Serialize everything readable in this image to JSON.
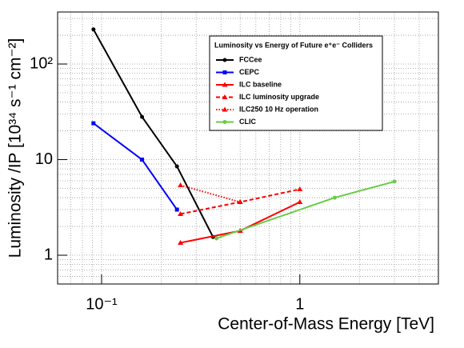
{
  "chart_data": {
    "type": "line",
    "x_label": "Center-of-Mass Energy [TeV]",
    "y_label": "Luminosity /IP [10³⁴ s⁻¹ cm⁻²]",
    "legend_title": "Luminosity vs Energy of Future e⁺e⁻ Colliders",
    "x_log": true,
    "y_log": true,
    "grid": true,
    "xlim": [
      0.06,
      5
    ],
    "ylim": [
      0.5,
      350
    ],
    "xticks": [
      {
        "value": 0.1,
        "label": "10⁻¹"
      },
      1
    ],
    "yticks": [
      1,
      10,
      {
        "value": 100,
        "label": "10²"
      }
    ],
    "x_minor_ticks": [
      0.07,
      0.08,
      0.09,
      0.2,
      0.3,
      0.4,
      0.5,
      0.6,
      0.7,
      0.8,
      0.9,
      2,
      3,
      4
    ],
    "y_minor_ticks": [
      0.6,
      0.7,
      0.8,
      0.9,
      2,
      3,
      4,
      5,
      6,
      7,
      8,
      9,
      20,
      30,
      40,
      50,
      60,
      70,
      80,
      90,
      200,
      300
    ],
    "series": [
      {
        "name": "FCCee",
        "color": "#000000",
        "dash": "solid",
        "marker": "circle",
        "x": [
          0.091,
          0.16,
          0.24,
          0.365
        ],
        "values": [
          230,
          28,
          8.5,
          1.55
        ]
      },
      {
        "name": "CEPC",
        "color": "#0000ff",
        "dash": "solid",
        "marker": "square",
        "x": [
          0.091,
          0.16,
          0.24
        ],
        "values": [
          24,
          10,
          3.0
        ]
      },
      {
        "name": "ILC baseline",
        "color": "#ff0000",
        "dash": "solid",
        "marker": "triangle",
        "x": [
          0.25,
          0.5,
          1.0
        ],
        "values": [
          1.35,
          1.8,
          3.6
        ]
      },
      {
        "name": "ILC luminosity upgrade",
        "color": "#ff0000",
        "dash": "dashed",
        "marker": "triangle",
        "x": [
          0.25,
          0.5,
          1.0
        ],
        "values": [
          2.7,
          3.6,
          4.9
        ]
      },
      {
        "name": "ILC250 10 Hz operation",
        "color": "#ff0000",
        "dash": "dotted",
        "marker": "triangle",
        "x": [
          0.25,
          0.5
        ],
        "values": [
          5.4,
          3.6
        ]
      },
      {
        "name": "CLIC",
        "color": "#66cc44",
        "dash": "solid",
        "marker": "circle",
        "x": [
          0.38,
          1.5,
          3.0
        ],
        "values": [
          1.5,
          4.0,
          5.9
        ]
      }
    ]
  }
}
